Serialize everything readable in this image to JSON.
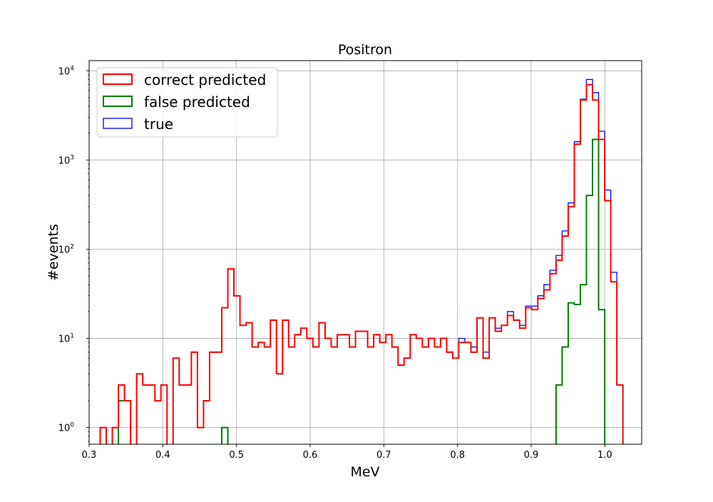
{
  "chart_data": {
    "type": "histogram-step",
    "title": "Positron",
    "xlabel": "MeV",
    "ylabel": "#events",
    "xlim": [
      0.3,
      1.05
    ],
    "ylim": [
      0.65,
      13000
    ],
    "yscale": "log",
    "grid": true,
    "legend_position": "upper-left",
    "x_ticks": [
      "0.3",
      "0.4",
      "0.5",
      "0.6",
      "0.7",
      "0.8",
      "0.9",
      "1.0"
    ],
    "y_ticks": [
      {
        "base": "10",
        "exp": "0"
      },
      {
        "base": "10",
        "exp": "1"
      },
      {
        "base": "10",
        "exp": "2"
      },
      {
        "base": "10",
        "exp": "3"
      },
      {
        "base": "10",
        "exp": "4"
      }
    ],
    "bin_start": 0.315,
    "bin_width": 0.00825,
    "series": [
      {
        "name": "true",
        "color": "#0000ff",
        "stroke_width": 1.3,
        "values": [
          1,
          0,
          1,
          3,
          2,
          0,
          4,
          3,
          3,
          2,
          3,
          0,
          6,
          3,
          3,
          7,
          1,
          2,
          7,
          7,
          22,
          60,
          30,
          14,
          15,
          8,
          9,
          8,
          16,
          4,
          16,
          8,
          11,
          13,
          10,
          8,
          15,
          10,
          8,
          11,
          11,
          8,
          12,
          12,
          8,
          11,
          9,
          11,
          8,
          5,
          6,
          11,
          10,
          8,
          10,
          8,
          10,
          7,
          6,
          10,
          9,
          8,
          17,
          7,
          17,
          13,
          14,
          20,
          16,
          14,
          23,
          23,
          30,
          40,
          58,
          85,
          160,
          330,
          1600,
          4800,
          8000,
          5700,
          2100,
          460,
          55,
          3
        ]
      },
      {
        "name": "correct predicted",
        "color": "#ff0000",
        "stroke_width": 2,
        "values": [
          1,
          0,
          1,
          3,
          2,
          0,
          4,
          3,
          3,
          2,
          3,
          0,
          6,
          3,
          3,
          7,
          1,
          2,
          7,
          7,
          22,
          60,
          30,
          14,
          15,
          8,
          9,
          8,
          16,
          4,
          16,
          8,
          11,
          13,
          10,
          8,
          15,
          10,
          8,
          11,
          11,
          8,
          12,
          12,
          8,
          11,
          9,
          11,
          8,
          5,
          6,
          11,
          10,
          8,
          10,
          8,
          10,
          7,
          6,
          9,
          9,
          7,
          17,
          6,
          17,
          12,
          14,
          18,
          16,
          13,
          22,
          21,
          28,
          35,
          53,
          75,
          140,
          300,
          1500,
          4700,
          7000,
          4700,
          1700,
          350,
          43,
          3
        ]
      },
      {
        "name": "false predicted",
        "color": "#008000",
        "stroke_width": 2,
        "values": [
          0,
          0,
          0,
          2,
          2,
          0,
          0,
          0,
          0,
          0,
          0,
          0,
          0,
          0,
          0,
          0,
          0,
          0,
          0,
          0,
          1,
          0,
          0,
          0,
          0,
          0,
          0,
          0,
          0,
          0,
          0,
          0,
          0,
          0,
          0,
          0,
          0,
          0,
          0,
          0,
          0,
          0,
          0,
          0,
          0,
          0,
          0,
          0,
          0,
          0,
          0,
          0,
          0,
          0,
          0,
          0,
          0,
          0,
          0,
          0,
          0,
          0,
          0,
          0,
          0,
          0,
          0,
          0,
          0,
          0,
          0,
          0,
          0,
          0,
          0,
          3,
          8,
          25,
          24,
          40,
          400,
          1700,
          21,
          0,
          0,
          0
        ]
      }
    ],
    "legend": [
      "correct predicted",
      "false predicted",
      "true"
    ]
  }
}
